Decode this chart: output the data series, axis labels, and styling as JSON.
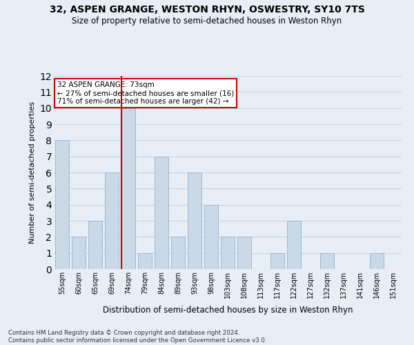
{
  "title1": "32, ASPEN GRANGE, WESTON RHYN, OSWESTRY, SY10 7TS",
  "title2": "Size of property relative to semi-detached houses in Weston Rhyn",
  "xlabel": "Distribution of semi-detached houses by size in Weston Rhyn",
  "ylabel": "Number of semi-detached properties",
  "categories": [
    "55sqm",
    "60sqm",
    "65sqm",
    "69sqm",
    "74sqm",
    "79sqm",
    "84sqm",
    "89sqm",
    "93sqm",
    "98sqm",
    "103sqm",
    "108sqm",
    "113sqm",
    "117sqm",
    "122sqm",
    "127sqm",
    "132sqm",
    "137sqm",
    "141sqm",
    "146sqm",
    "151sqm"
  ],
  "values": [
    8,
    2,
    3,
    6,
    10,
    1,
    7,
    2,
    6,
    4,
    2,
    2,
    0,
    1,
    3,
    0,
    1,
    0,
    0,
    1,
    0
  ],
  "bar_color": "#c9d9e8",
  "bar_edge_color": "#a0b8cf",
  "highlight_index": 4,
  "highlight_line_color": "#cc0000",
  "annotation_line1": "32 ASPEN GRANGE: 73sqm",
  "annotation_line2": "← 27% of semi-detached houses are smaller (16)",
  "annotation_line3": "71% of semi-detached houses are larger (42) →",
  "annotation_box_color": "#ffffff",
  "annotation_box_edge_color": "#cc0000",
  "ylim": [
    0,
    12
  ],
  "yticks": [
    0,
    1,
    2,
    3,
    4,
    5,
    6,
    7,
    8,
    9,
    10,
    11,
    12
  ],
  "grid_color": "#c8d4e4",
  "bg_color": "#e8eef6",
  "footnote": "Contains HM Land Registry data © Crown copyright and database right 2024.\nContains public sector information licensed under the Open Government Licence v3.0."
}
